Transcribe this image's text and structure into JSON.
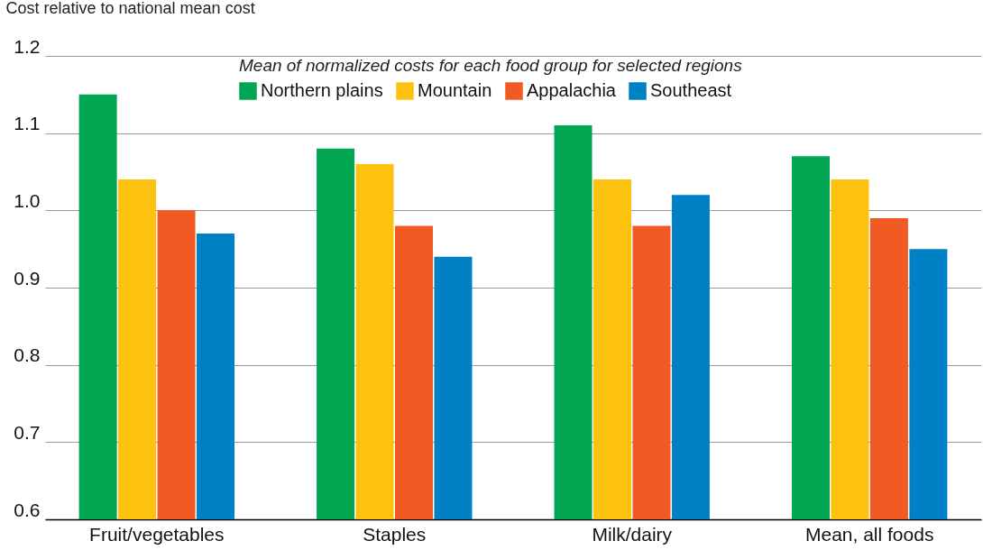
{
  "chart_data": {
    "type": "bar",
    "ylabel": "Cost relative to national mean cost",
    "legend_title": "Mean of normalized costs for each food group for selected regions",
    "categories": [
      "Fruit/vegetables",
      "Staples",
      "Milk/dairy",
      "Mean, all foods"
    ],
    "series": [
      {
        "name": "Northern plains",
        "color": "#00a651",
        "values": [
          1.15,
          1.08,
          1.11,
          1.07
        ]
      },
      {
        "name": "Mountain",
        "color": "#fdc210",
        "values": [
          1.04,
          1.06,
          1.04,
          1.04
        ]
      },
      {
        "name": "Appalachia",
        "color": "#f15a22",
        "values": [
          1.0,
          0.98,
          0.98,
          0.99
        ]
      },
      {
        "name": "Southeast",
        "color": "#0081c6",
        "values": [
          0.97,
          0.94,
          1.02,
          0.95
        ]
      }
    ],
    "ylim": [
      0.6,
      1.2
    ],
    "yticks": [
      0.6,
      0.7,
      0.8,
      0.9,
      {
        "value": 1,
        "label": "1.0"
      },
      1.1,
      1.2
    ],
    "grid": "y",
    "legend": "top"
  }
}
